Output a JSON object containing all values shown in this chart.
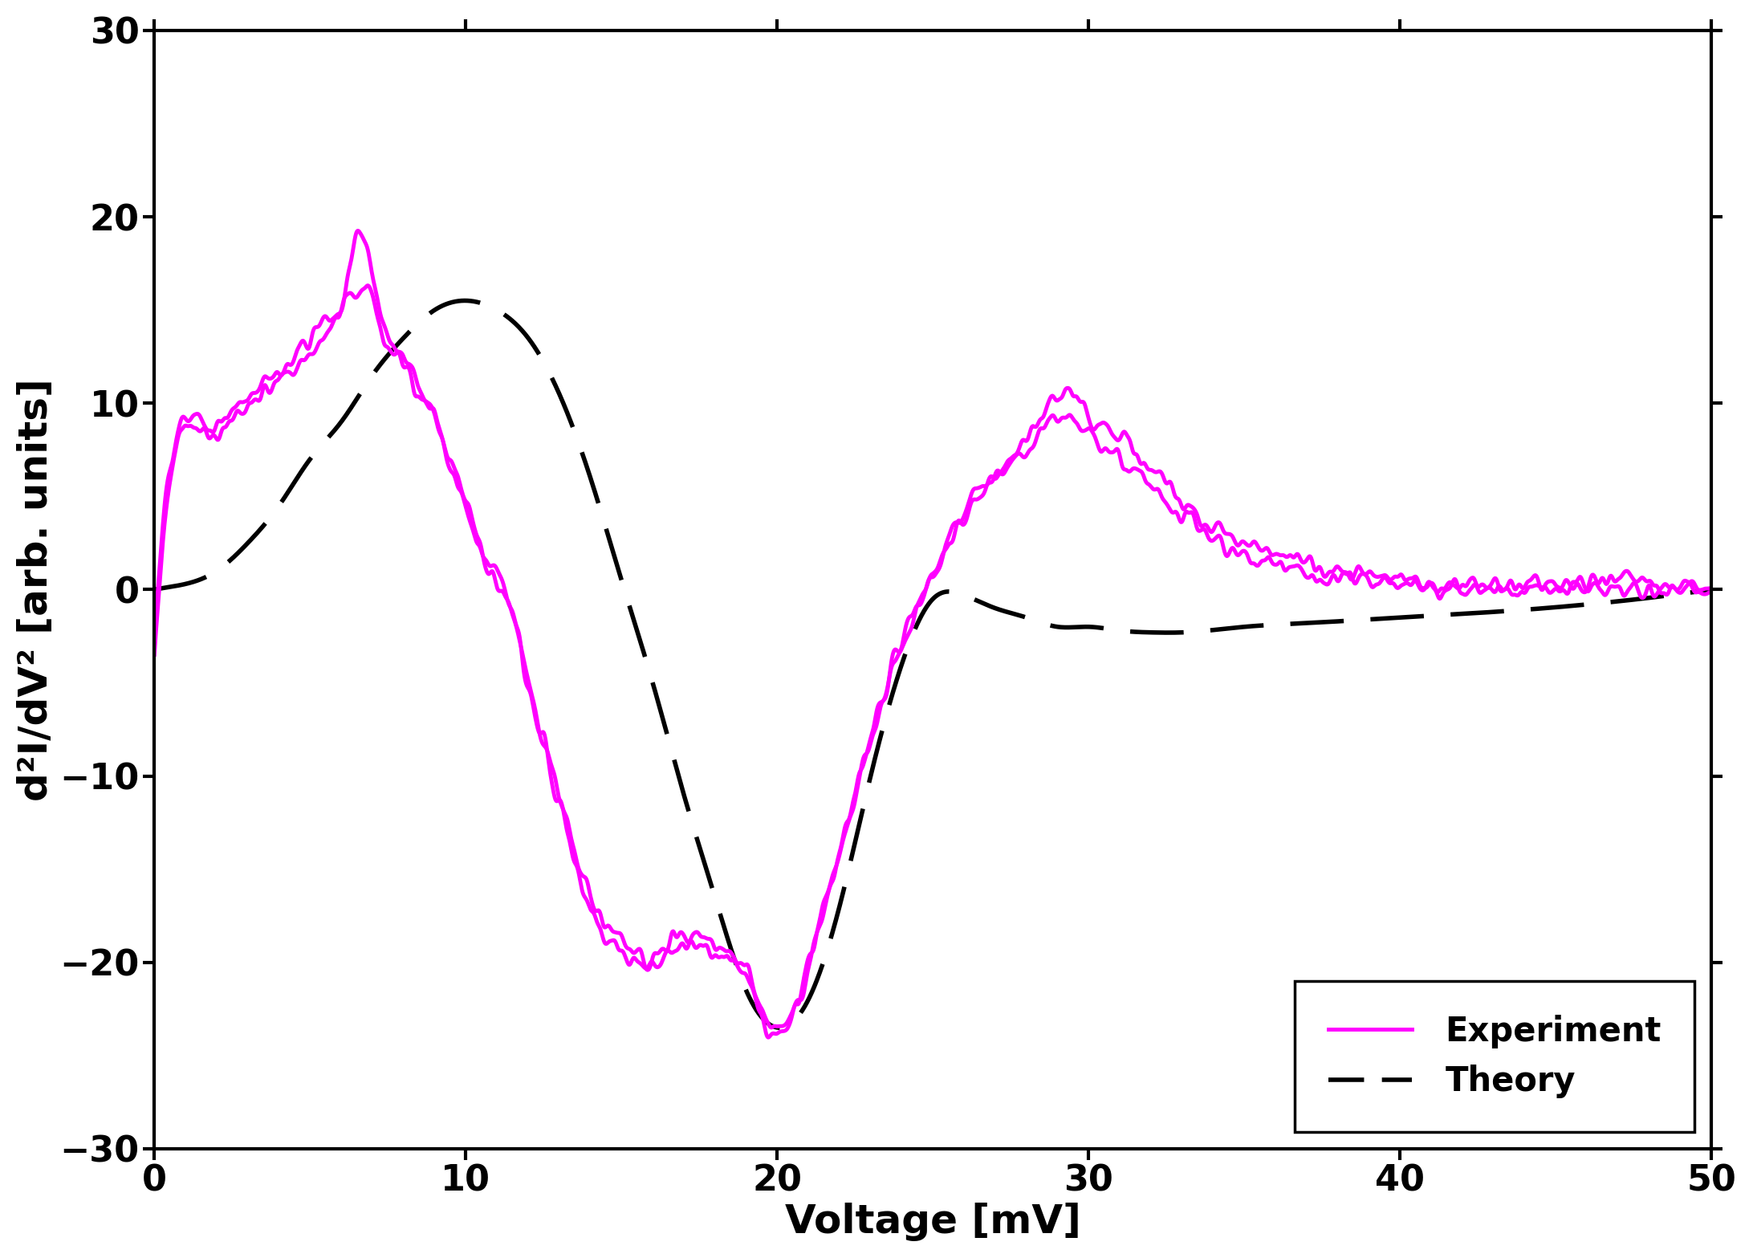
{
  "title": "",
  "xlabel": "Voltage [mV]",
  "ylabel": "d²I/dV² [arb. units]",
  "xlim": [
    0,
    50
  ],
  "ylim": [
    -30,
    30
  ],
  "xticks": [
    0,
    10,
    20,
    30,
    40,
    50
  ],
  "yticks": [
    -30,
    -20,
    -10,
    0,
    10,
    20,
    30
  ],
  "experiment_color": "#FF00FF",
  "theory_color": "#000000",
  "experiment_linewidth": 3.5,
  "theory_linewidth": 4.0,
  "legend_fontsize": 30,
  "axis_label_fontsize": 36,
  "tick_fontsize": 32,
  "background_color": "#ffffff",
  "exp1_x": [
    0,
    0.5,
    1.5,
    2.5,
    3.5,
    4.5,
    5.5,
    6.0,
    6.5,
    7.0,
    7.5,
    8.0,
    8.5,
    9.0,
    9.5,
    10.0,
    10.5,
    11.0,
    11.5,
    12.0,
    12.5,
    13.0,
    13.5,
    14.0,
    15.0,
    16.0,
    17.0,
    18.0,
    19.0,
    20.0,
    21.0,
    22.0,
    23.0,
    24.0,
    25.0,
    26.0,
    27.0,
    28.0,
    29.0,
    30.0,
    31.0,
    32.0,
    33.0,
    35.0,
    37.0,
    40.0,
    45.0,
    50.0
  ],
  "exp1_y": [
    -3.5,
    6.5,
    9.0,
    9.5,
    11.0,
    12.5,
    14.0,
    15.0,
    19.0,
    17.0,
    13.5,
    12.5,
    11.0,
    9.5,
    7.0,
    5.0,
    2.0,
    0.5,
    -1.5,
    -5.0,
    -8.0,
    -11.0,
    -14.0,
    -16.5,
    -19.0,
    -19.5,
    -18.5,
    -19.0,
    -20.5,
    -23.5,
    -20.0,
    -14.0,
    -8.0,
    -3.0,
    1.0,
    4.0,
    6.0,
    8.0,
    10.5,
    9.5,
    8.0,
    6.5,
    4.5,
    2.5,
    1.5,
    0.5,
    0.2,
    0.0
  ],
  "exp2_x": [
    0,
    0.5,
    1.5,
    2.5,
    3.5,
    4.5,
    5.5,
    6.0,
    6.5,
    7.0,
    7.5,
    8.0,
    8.5,
    9.0,
    9.5,
    10.0,
    10.5,
    11.0,
    11.5,
    12.0,
    12.5,
    13.0,
    13.5,
    14.0,
    15.0,
    16.0,
    17.0,
    18.0,
    19.0,
    20.0,
    21.0,
    22.0,
    23.0,
    24.0,
    25.0,
    26.0,
    27.0,
    28.0,
    29.0,
    30.0,
    31.0,
    32.0,
    33.0,
    35.0,
    37.0,
    40.0,
    45.0,
    50.0
  ],
  "exp2_y": [
    -3.5,
    6.0,
    8.5,
    9.0,
    10.5,
    12.0,
    13.5,
    15.0,
    16.0,
    15.5,
    13.0,
    12.0,
    10.5,
    9.0,
    6.5,
    4.5,
    2.0,
    0.5,
    -1.5,
    -5.0,
    -8.5,
    -11.5,
    -14.5,
    -17.0,
    -19.5,
    -20.0,
    -19.0,
    -19.5,
    -21.0,
    -24.0,
    -20.0,
    -14.0,
    -8.0,
    -3.0,
    1.0,
    4.0,
    6.0,
    7.5,
    9.0,
    8.5,
    7.0,
    5.5,
    4.0,
    2.0,
    1.0,
    0.3,
    0.1,
    0.0
  ],
  "theory_x": [
    0,
    1.0,
    2.0,
    3.0,
    4.0,
    5.0,
    6.0,
    7.0,
    8.0,
    9.0,
    10.0,
    11.0,
    12.0,
    13.0,
    14.0,
    15.0,
    16.0,
    17.0,
    18.0,
    19.0,
    20.0,
    21.0,
    22.0,
    23.0,
    24.0,
    25.0,
    26.0,
    27.0,
    28.0,
    29.0,
    30.0,
    31.0,
    32.0,
    33.0,
    35.0,
    37.0,
    40.0,
    43.0,
    46.0,
    50.0
  ],
  "theory_y": [
    0.0,
    0.3,
    1.0,
    2.5,
    4.5,
    7.0,
    9.0,
    11.5,
    13.5,
    15.0,
    15.5,
    15.0,
    13.5,
    10.5,
    6.0,
    0.5,
    -5.0,
    -11.0,
    -16.5,
    -21.5,
    -23.5,
    -22.0,
    -17.0,
    -10.0,
    -4.0,
    -0.5,
    -0.3,
    -1.0,
    -1.5,
    -2.0,
    -2.0,
    -2.2,
    -2.3,
    -2.3,
    -2.0,
    -1.8,
    -1.5,
    -1.2,
    -0.8,
    0.0
  ]
}
